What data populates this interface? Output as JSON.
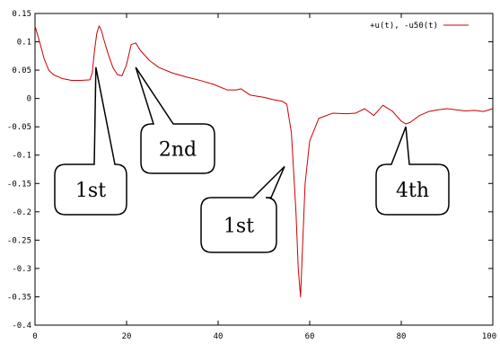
{
  "chart_data": {
    "type": "line",
    "xlim": [
      0,
      100
    ],
    "ylim": [
      -0.4,
      0.15
    ],
    "x_ticks": [
      0,
      20,
      40,
      60,
      80,
      100
    ],
    "y_ticks": [
      0.15,
      0.1,
      0.05,
      0,
      -0.05,
      -0.1,
      -0.15,
      -0.2,
      -0.25,
      -0.3,
      -0.35,
      -0.4
    ],
    "x_tick_labels": [
      "0",
      "20",
      "40",
      "60",
      "80",
      "100"
    ],
    "y_tick_labels": [
      "0.15",
      "0.1",
      "0.05",
      "0",
      "-0.05",
      "-0.1",
      "-0.15",
      "-0.2",
      "-0.25",
      "-0.3",
      "-0.35",
      "-0.4"
    ],
    "grid": false,
    "legend_position": "top-right",
    "series": [
      {
        "name": "+u(t), -u50(t)",
        "color": "#cc0000",
        "x": [
          0,
          1,
          2,
          3,
          4,
          6,
          8,
          10,
          12,
          12.5,
          13,
          13.5,
          14,
          14.5,
          15,
          16,
          17,
          18,
          19,
          20,
          21,
          22,
          23,
          25,
          27,
          30,
          33,
          36,
          39,
          42,
          44,
          45,
          47,
          50,
          52,
          54,
          55,
          56,
          57,
          57.5,
          58,
          58.5,
          59,
          60,
          62,
          65,
          68,
          70,
          72,
          74,
          76,
          78,
          80,
          81,
          82,
          84,
          86,
          88,
          90,
          92,
          94,
          96,
          98,
          100
        ],
        "y": [
          0.128,
          0.1,
          0.07,
          0.05,
          0.042,
          0.035,
          0.032,
          0.032,
          0.033,
          0.045,
          0.085,
          0.115,
          0.128,
          0.12,
          0.105,
          0.078,
          0.055,
          0.042,
          0.04,
          0.06,
          0.095,
          0.098,
          0.085,
          0.067,
          0.055,
          0.045,
          0.038,
          0.032,
          0.025,
          0.015,
          0.015,
          0.017,
          0.006,
          0.002,
          -0.002,
          -0.005,
          -0.01,
          -0.06,
          -0.2,
          -0.3,
          -0.35,
          -0.25,
          -0.15,
          -0.075,
          -0.035,
          -0.026,
          -0.027,
          -0.026,
          -0.018,
          -0.03,
          -0.012,
          -0.022,
          -0.04,
          -0.045,
          -0.042,
          -0.03,
          -0.023,
          -0.02,
          -0.018,
          -0.02,
          -0.022,
          -0.021,
          -0.023,
          -0.018
        ]
      }
    ],
    "annotations": [
      {
        "text": "1st",
        "point": [
          13.3,
          0.055
        ]
      },
      {
        "text": "2nd",
        "point": [
          22,
          0.055
        ]
      },
      {
        "text": "1st",
        "point": [
          54.5,
          -0.12
        ]
      },
      {
        "text": "4th",
        "point": [
          81,
          -0.05
        ]
      }
    ]
  }
}
